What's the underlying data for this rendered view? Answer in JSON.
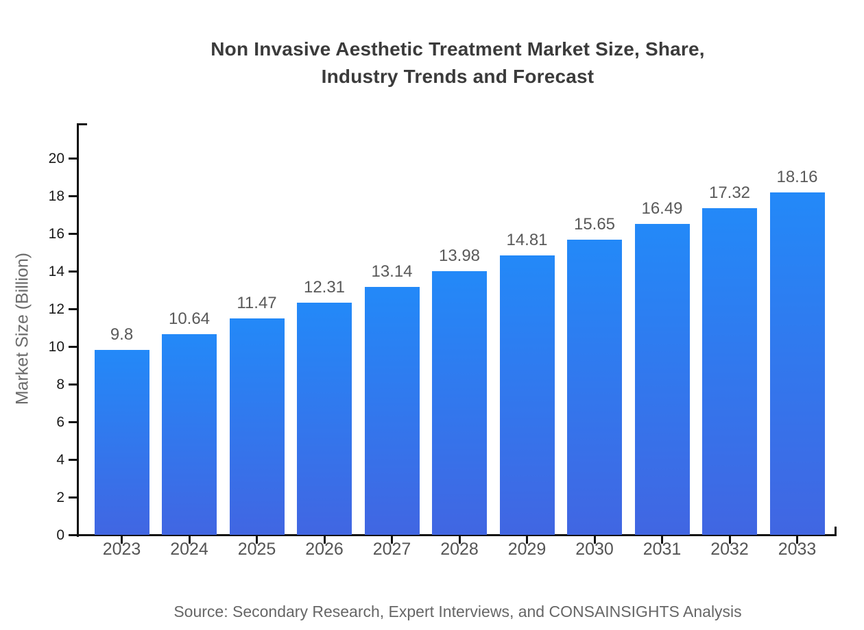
{
  "title": {
    "line1": "Non Invasive Aesthetic Treatment Market Size, Share,",
    "line2": "Industry Trends and Forecast"
  },
  "source": "Source: Secondary Research, Expert Interviews, and CONSAINSIGHTS Analysis",
  "chart_data": {
    "type": "bar",
    "title": "Non Invasive Aesthetic Treatment Market Size, Share, Industry Trends and Forecast",
    "xlabel": "",
    "ylabel": "Market Size (Billion)",
    "categories": [
      "2023",
      "2024",
      "2025",
      "2026",
      "2027",
      "2028",
      "2029",
      "2030",
      "2031",
      "2032",
      "2033"
    ],
    "values": [
      9.8,
      10.64,
      11.47,
      12.31,
      13.14,
      13.98,
      14.81,
      15.65,
      16.49,
      17.32,
      18.16
    ],
    "value_labels": [
      "9.8",
      "10.64",
      "11.47",
      "12.31",
      "13.14",
      "13.98",
      "14.81",
      "15.65",
      "16.49",
      "17.32",
      "18.16"
    ],
    "ylim": [
      0,
      21.8
    ],
    "yticks": [
      0,
      2,
      4,
      6,
      8,
      10,
      12,
      14,
      16,
      18,
      20
    ],
    "grid": false,
    "legend": "none",
    "bar_color_top": "#2389f8",
    "bar_color_bottom": "#4166e2",
    "axis_color": "#111111",
    "value_label_color": "#595959",
    "tick_label_color": "#555555"
  }
}
